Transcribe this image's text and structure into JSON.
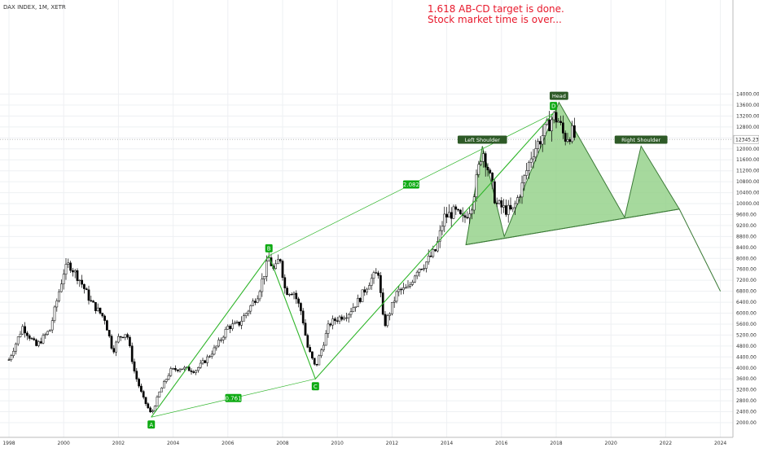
{
  "chart_data": {
    "type": "candlestick",
    "symbol": "DAX INDEX, 1M, XETR",
    "annotation_lines": [
      "1.618 AB-CD target is done.",
      "Stock market time is over..."
    ],
    "x_ticks": [
      "1998",
      "2000",
      "2002",
      "2004",
      "2006",
      "2008",
      "2010",
      "2012",
      "2014",
      "2016",
      "2018",
      "2020",
      "2022",
      "2024"
    ],
    "y_ticks": [
      "14000.00",
      "13600.00",
      "13200.00",
      "12800.00",
      "12400.00",
      "12000.00",
      "11600.00",
      "11200.00",
      "10800.00",
      "10400.00",
      "10000.00",
      "9600.00",
      "9200.00",
      "8800.00",
      "8400.00",
      "8000.00",
      "7600.00",
      "7200.00",
      "6800.00",
      "6400.00",
      "6000.00",
      "5600.00",
      "5200.00",
      "4800.00",
      "4400.00",
      "4000.00",
      "3600.00",
      "3200.00",
      "2800.00",
      "2400.00",
      "2000.00"
    ],
    "ylim": [
      1800,
      14300
    ],
    "last_price": "12345.23",
    "price_path": [
      [
        1998.0,
        4300
      ],
      [
        1998.5,
        5500
      ],
      [
        1999.0,
        4800
      ],
      [
        1999.5,
        5400
      ],
      [
        2000.0,
        7500
      ],
      [
        2000.2,
        7800
      ],
      [
        2000.6,
        7200
      ],
      [
        2001.0,
        6400
      ],
      [
        2001.5,
        5800
      ],
      [
        2001.8,
        4600
      ],
      [
        2002.0,
        5100
      ],
      [
        2002.3,
        5300
      ],
      [
        2002.6,
        3800
      ],
      [
        2002.9,
        2900
      ],
      [
        2003.2,
        2300
      ],
      [
        2003.5,
        3100
      ],
      [
        2003.9,
        3900
      ],
      [
        2004.3,
        4000
      ],
      [
        2004.8,
        3900
      ],
      [
        2005.2,
        4300
      ],
      [
        2005.6,
        4800
      ],
      [
        2006.0,
        5500
      ],
      [
        2006.4,
        5600
      ],
      [
        2006.8,
        6200
      ],
      [
        2007.1,
        6700
      ],
      [
        2007.5,
        8000
      ],
      [
        2007.7,
        7500
      ],
      [
        2007.9,
        8100
      ],
      [
        2008.1,
        6800
      ],
      [
        2008.4,
        6800
      ],
      [
        2008.7,
        6000
      ],
      [
        2008.9,
        4800
      ],
      [
        2009.2,
        4000
      ],
      [
        2009.4,
        4600
      ],
      [
        2009.7,
        5600
      ],
      [
        2010.0,
        5800
      ],
      [
        2010.4,
        6000
      ],
      [
        2010.8,
        6500
      ],
      [
        2011.2,
        7200
      ],
      [
        2011.5,
        7500
      ],
      [
        2011.7,
        5500
      ],
      [
        2011.9,
        6000
      ],
      [
        2012.2,
        6800
      ],
      [
        2012.6,
        6900
      ],
      [
        2012.9,
        7600
      ],
      [
        2013.2,
        7800
      ],
      [
        2013.6,
        8300
      ],
      [
        2013.9,
        9500
      ],
      [
        2014.3,
        9700
      ],
      [
        2014.6,
        9400
      ],
      [
        2014.9,
        9900
      ],
      [
        2015.3,
        12000
      ],
      [
        2015.5,
        11300
      ],
      [
        2015.8,
        10000
      ],
      [
        2016.1,
        9800
      ],
      [
        2016.4,
        9700
      ],
      [
        2016.7,
        10500
      ],
      [
        2017.1,
        11800
      ],
      [
        2017.5,
        12500
      ],
      [
        2017.9,
        13200
      ],
      [
        2018.1,
        13000
      ],
      [
        2018.3,
        12400
      ],
      [
        2018.6,
        12600
      ],
      [
        2018.7,
        12345
      ]
    ],
    "abcd_pattern": {
      "points": [
        {
          "label": "A",
          "x": 2003.2,
          "y": 2200
        },
        {
          "label": "B",
          "x": 2007.5,
          "y": 8100
        },
        {
          "label": "C",
          "x": 2009.2,
          "y": 3600
        },
        {
          "label": "D",
          "x": 2017.9,
          "y": 13300
        }
      ],
      "ratios": [
        {
          "label": "0.761",
          "from": "A",
          "to": "C"
        },
        {
          "label": "2.082",
          "from": "B",
          "to": "D"
        }
      ]
    },
    "head_and_shoulders": {
      "labels": [
        "Left Shoulder",
        "Head",
        "Right Shoulder"
      ],
      "left_shoulder": {
        "x": 2015.3,
        "y": 12100
      },
      "head": {
        "x": 2018.1,
        "y": 13700
      },
      "right_shoulder": {
        "x": 2021.1,
        "y": 12100
      },
      "neckline": [
        [
          2014.7,
          8500
        ],
        [
          2016.1,
          8800
        ],
        [
          2020.5,
          9500
        ],
        [
          2022.5,
          9800
        ]
      ],
      "projection": [
        [
          2022.5,
          9800
        ],
        [
          2024.0,
          6800
        ]
      ]
    },
    "colors": {
      "up": "#ffffff",
      "down": "#000000",
      "pattern_line": "#2fb52a",
      "fill": "#90cf85",
      "fill_stroke": "#3a7a36",
      "label_bg": "#2e5a27",
      "point_bg": "#0eaa13",
      "annotation": "#e8192c"
    }
  }
}
